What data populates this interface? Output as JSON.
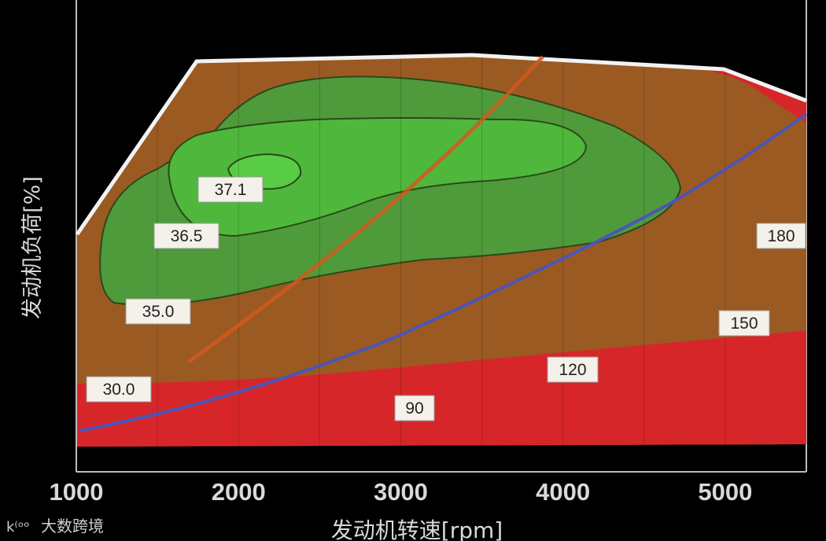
{
  "chart_data": {
    "type": "contour",
    "xlabel": "发动机转速[rpm]",
    "ylabel": "发动机负荷[%]",
    "x_ticks": [
      1000,
      2000,
      3000,
      4000,
      5000
    ],
    "xlim": [
      1000,
      5500
    ],
    "ylim": [
      0,
      100
    ],
    "efficiency_contours": [
      {
        "label": "37.1",
        "value": 37.1
      },
      {
        "label": "36.5",
        "value": 36.5
      },
      {
        "label": "35.0",
        "value": 35.0
      },
      {
        "label": "30.0",
        "value": 30.0
      }
    ],
    "power_lines": [
      {
        "label": "180",
        "value": 180
      },
      {
        "label": "150",
        "value": 150
      },
      {
        "label": "120",
        "value": 120
      },
      {
        "label": "90",
        "value": 90
      }
    ],
    "colors": {
      "background": "#000000",
      "brown_region": "#9b5a22",
      "green_outer": "#4f9a3a",
      "green_mid": "#4fb83c",
      "green_inner": "#58cc44",
      "red_region": "#d7262a",
      "orange_line": "#d2581e",
      "blue_line": "#4b55b8",
      "boundary": "#f2f2f2"
    }
  },
  "watermark": {
    "text": "大数跨境"
  }
}
